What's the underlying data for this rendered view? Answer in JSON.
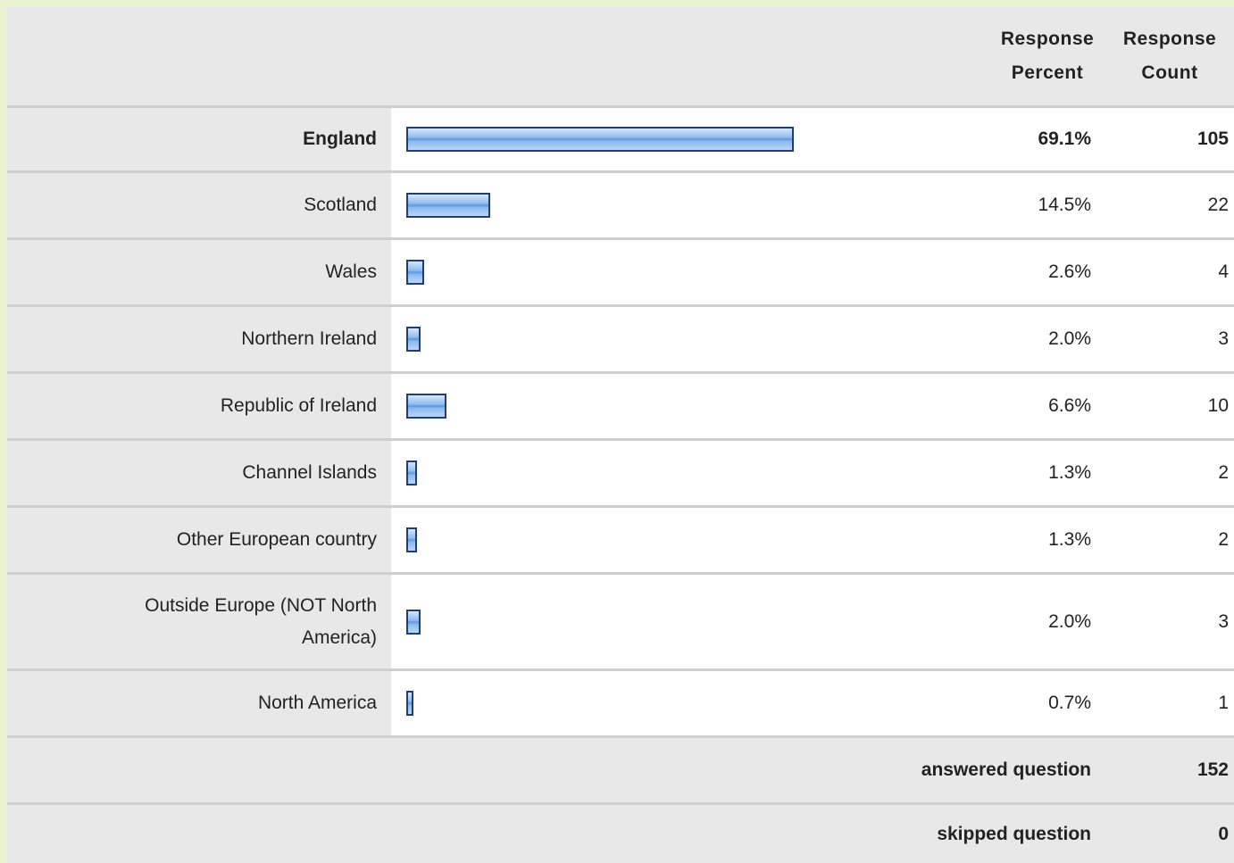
{
  "table": {
    "header": [
      "Response Percent",
      "Response Count"
    ],
    "rows": [
      {
        "label": "England",
        "percent": 69.1,
        "percent_label": "69.1%",
        "count": 105
      },
      {
        "label": "Scotland",
        "percent": 14.5,
        "percent_label": "14.5%",
        "count": 22
      },
      {
        "label": "Wales",
        "percent": 2.6,
        "percent_label": "2.6%",
        "count": 4
      },
      {
        "label": "Northern Ireland",
        "percent": 2.0,
        "percent_label": "2.0%",
        "count": 3
      },
      {
        "label": "Republic of Ireland",
        "percent": 6.6,
        "percent_label": "6.6%",
        "count": 10
      },
      {
        "label": "Channel Islands",
        "percent": 1.3,
        "percent_label": "1.3%",
        "count": 2
      },
      {
        "label": "Other European country",
        "percent": 1.3,
        "percent_label": "1.3%",
        "count": 2
      },
      {
        "label": "Outside Europe (NOT North America)",
        "percent": 2.0,
        "percent_label": "2.0%",
        "count": 3
      },
      {
        "label": "North America",
        "percent": 0.7,
        "percent_label": "0.7%",
        "count": 1
      }
    ],
    "footer": [
      {
        "label": "answered question",
        "count": 152
      },
      {
        "label": "skipped question",
        "count": 0
      }
    ]
  }
}
